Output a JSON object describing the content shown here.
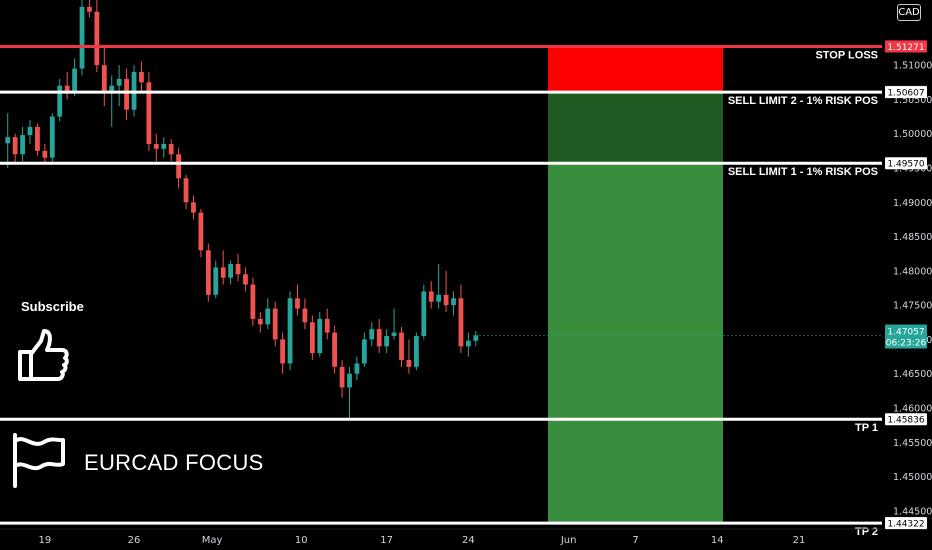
{
  "ui": {
    "currency": "CAD",
    "subscribe_label": "Subscribe",
    "pair_title": "EURCAD FOCUS",
    "icons": [
      "thumbs-up-icon",
      "flag-icon"
    ]
  },
  "chart_data": {
    "type": "candlestick",
    "symbol": "EURCAD",
    "ylim": [
      1.4425,
      1.5195
    ],
    "y_ticks": [
      "1.51000",
      "1.50500",
      "1.50000",
      "1.49500",
      "1.49000",
      "1.48500",
      "1.48000",
      "1.47500",
      "1.47000",
      "1.46500",
      "1.46000",
      "1.45500",
      "1.45000",
      "1.44500"
    ],
    "x_ticks": [
      {
        "label": "19",
        "slot": 5.5
      },
      {
        "label": "26",
        "slot": 17.5
      },
      {
        "label": "May",
        "slot": 28
      },
      {
        "label": "10",
        "slot": 40
      },
      {
        "label": "17",
        "slot": 51.5
      },
      {
        "label": "24",
        "slot": 62.5
      },
      {
        "label": "Jun",
        "slot": 76
      },
      {
        "label": "7",
        "slot": 85
      },
      {
        "label": "14",
        "slot": 96
      },
      {
        "label": "21",
        "slot": 107
      }
    ],
    "candles": [
      {
        "o": 1.4986,
        "h": 1.503,
        "l": 1.495,
        "c": 1.4995
      },
      {
        "o": 1.4995,
        "h": 1.5,
        "l": 1.4955,
        "c": 1.497
      },
      {
        "o": 1.497,
        "h": 1.501,
        "l": 1.496,
        "c": 1.4998
      },
      {
        "o": 1.4998,
        "h": 1.502,
        "l": 1.4985,
        "c": 1.501
      },
      {
        "o": 1.501,
        "h": 1.5015,
        "l": 1.4968,
        "c": 1.4975
      },
      {
        "o": 1.4975,
        "h": 1.4985,
        "l": 1.4955,
        "c": 1.4965
      },
      {
        "o": 1.4965,
        "h": 1.503,
        "l": 1.4958,
        "c": 1.5025
      },
      {
        "o": 1.5025,
        "h": 1.508,
        "l": 1.5018,
        "c": 1.507
      },
      {
        "o": 1.507,
        "h": 1.509,
        "l": 1.505,
        "c": 1.506
      },
      {
        "o": 1.506,
        "h": 1.511,
        "l": 1.5055,
        "c": 1.5095
      },
      {
        "o": 1.5095,
        "h": 1.5195,
        "l": 1.5085,
        "c": 1.5185
      },
      {
        "o": 1.5185,
        "h": 1.52,
        "l": 1.517,
        "c": 1.5178
      },
      {
        "o": 1.5178,
        "h": 1.5205,
        "l": 1.509,
        "c": 1.51
      },
      {
        "o": 1.51,
        "h": 1.513,
        "l": 1.504,
        "c": 1.506
      },
      {
        "o": 1.506,
        "h": 1.5085,
        "l": 1.501,
        "c": 1.507
      },
      {
        "o": 1.507,
        "h": 1.51,
        "l": 1.504,
        "c": 1.508
      },
      {
        "o": 1.508,
        "h": 1.5095,
        "l": 1.502,
        "c": 1.5035
      },
      {
        "o": 1.5035,
        "h": 1.51,
        "l": 1.5025,
        "c": 1.509
      },
      {
        "o": 1.509,
        "h": 1.5105,
        "l": 1.506,
        "c": 1.5075
      },
      {
        "o": 1.5075,
        "h": 1.509,
        "l": 1.4975,
        "c": 1.4985
      },
      {
        "o": 1.4985,
        "h": 1.5,
        "l": 1.496,
        "c": 1.4978
      },
      {
        "o": 1.4978,
        "h": 1.4995,
        "l": 1.4965,
        "c": 1.4985
      },
      {
        "o": 1.4985,
        "h": 1.4992,
        "l": 1.496,
        "c": 1.497
      },
      {
        "o": 1.497,
        "h": 1.498,
        "l": 1.492,
        "c": 1.4935
      },
      {
        "o": 1.4935,
        "h": 1.494,
        "l": 1.489,
        "c": 1.49
      },
      {
        "o": 1.49,
        "h": 1.491,
        "l": 1.4875,
        "c": 1.4885
      },
      {
        "o": 1.4885,
        "h": 1.489,
        "l": 1.482,
        "c": 1.483
      },
      {
        "o": 1.483,
        "h": 1.484,
        "l": 1.4755,
        "c": 1.4765
      },
      {
        "o": 1.4765,
        "h": 1.4815,
        "l": 1.476,
        "c": 1.4805
      },
      {
        "o": 1.4805,
        "h": 1.483,
        "l": 1.478,
        "c": 1.479
      },
      {
        "o": 1.479,
        "h": 1.4815,
        "l": 1.478,
        "c": 1.481
      },
      {
        "o": 1.481,
        "h": 1.4825,
        "l": 1.4785,
        "c": 1.4795
      },
      {
        "o": 1.4795,
        "h": 1.4805,
        "l": 1.477,
        "c": 1.478
      },
      {
        "o": 1.478,
        "h": 1.479,
        "l": 1.472,
        "c": 1.473
      },
      {
        "o": 1.473,
        "h": 1.474,
        "l": 1.471,
        "c": 1.4722
      },
      {
        "o": 1.4722,
        "h": 1.476,
        "l": 1.4715,
        "c": 1.4745
      },
      {
        "o": 1.4745,
        "h": 1.4755,
        "l": 1.469,
        "c": 1.47
      },
      {
        "o": 1.47,
        "h": 1.471,
        "l": 1.465,
        "c": 1.4665
      },
      {
        "o": 1.4665,
        "h": 1.477,
        "l": 1.4655,
        "c": 1.476
      },
      {
        "o": 1.476,
        "h": 1.478,
        "l": 1.4735,
        "c": 1.4745
      },
      {
        "o": 1.4745,
        "h": 1.476,
        "l": 1.4715,
        "c": 1.4725
      },
      {
        "o": 1.4725,
        "h": 1.4735,
        "l": 1.467,
        "c": 1.468
      },
      {
        "o": 1.468,
        "h": 1.474,
        "l": 1.4675,
        "c": 1.473
      },
      {
        "o": 1.473,
        "h": 1.4745,
        "l": 1.47,
        "c": 1.471
      },
      {
        "o": 1.471,
        "h": 1.472,
        "l": 1.465,
        "c": 1.466
      },
      {
        "o": 1.466,
        "h": 1.467,
        "l": 1.4615,
        "c": 1.463
      },
      {
        "o": 1.463,
        "h": 1.466,
        "l": 1.4585,
        "c": 1.465
      },
      {
        "o": 1.465,
        "h": 1.4675,
        "l": 1.464,
        "c": 1.4665
      },
      {
        "o": 1.4665,
        "h": 1.471,
        "l": 1.466,
        "c": 1.47
      },
      {
        "o": 1.47,
        "h": 1.4725,
        "l": 1.469,
        "c": 1.4715
      },
      {
        "o": 1.4715,
        "h": 1.473,
        "l": 1.468,
        "c": 1.469
      },
      {
        "o": 1.469,
        "h": 1.4715,
        "l": 1.468,
        "c": 1.4705
      },
      {
        "o": 1.4705,
        "h": 1.4745,
        "l": 1.47,
        "c": 1.471
      },
      {
        "o": 1.471,
        "h": 1.4718,
        "l": 1.466,
        "c": 1.467
      },
      {
        "o": 1.467,
        "h": 1.47,
        "l": 1.465,
        "c": 1.466
      },
      {
        "o": 1.466,
        "h": 1.471,
        "l": 1.4655,
        "c": 1.4705
      },
      {
        "o": 1.4705,
        "h": 1.478,
        "l": 1.47,
        "c": 1.477
      },
      {
        "o": 1.477,
        "h": 1.4785,
        "l": 1.4745,
        "c": 1.4755
      },
      {
        "o": 1.4755,
        "h": 1.481,
        "l": 1.4745,
        "c": 1.4765
      },
      {
        "o": 1.4765,
        "h": 1.48,
        "l": 1.474,
        "c": 1.475
      },
      {
        "o": 1.475,
        "h": 1.477,
        "l": 1.4735,
        "c": 1.476
      },
      {
        "o": 1.476,
        "h": 1.478,
        "l": 1.468,
        "c": 1.469
      },
      {
        "o": 1.469,
        "h": 1.471,
        "l": 1.4675,
        "c": 1.4698
      },
      {
        "o": 1.4698,
        "h": 1.4712,
        "l": 1.469,
        "c": 1.4706
      }
    ],
    "levels": [
      {
        "name": "STOP LOSS",
        "value": 1.51271,
        "price_label": "1.51271",
        "color": "#f23645",
        "tag_bg": "#f23645"
      },
      {
        "name": "SELL LIMIT 2 - 1% RISK POS",
        "value": 1.50607,
        "price_label": "1.50607",
        "color": "#ffffff",
        "tag_bg": "#ffffff"
      },
      {
        "name": "SELL LIMIT 1 - 1% RISK POS",
        "value": 1.4957,
        "price_label": "1.49570",
        "color": "#ffffff",
        "tag_bg": "#ffffff"
      },
      {
        "name": "TP 1",
        "value": 1.45836,
        "price_label": "1.45836",
        "color": "#ffffff",
        "tag_bg": "#ffffff"
      },
      {
        "name": "TP 2",
        "value": 1.44322,
        "price_label": "1.44322",
        "color": "#ffffff",
        "tag_bg": "#ffffff"
      }
    ],
    "zones": [
      {
        "from": 1.51271,
        "to": 1.50607,
        "color": "#ff0000"
      },
      {
        "from": 1.50607,
        "to": 1.4957,
        "color": "#1e5c23"
      },
      {
        "from": 1.4957,
        "to": 1.44325,
        "color": "#388e3c"
      }
    ],
    "price_tags": [
      {
        "label": "1.51274",
        "value": 1.51274,
        "bg": "#f23645",
        "fg": "#ffffff"
      },
      {
        "label": "1.50612",
        "value": 1.50612,
        "bg": "#5d606b",
        "fg": "#ffffff"
      },
      {
        "label": "1.44325",
        "value": 1.44325,
        "bg": "#2e7d32",
        "fg": "#ffffff"
      }
    ],
    "current_price": {
      "label": "1.47057",
      "countdown": "06:23:26",
      "value": 1.47057,
      "bg": "#26a69a"
    },
    "colors": {
      "up": "#26a69a",
      "down": "#ef5350",
      "background": "#000000",
      "axis_text": "#d1d4dc"
    }
  }
}
